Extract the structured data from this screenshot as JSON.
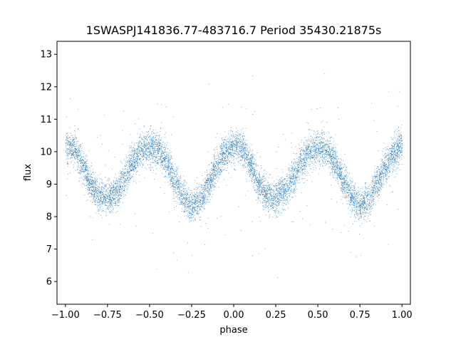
{
  "chart_data": {
    "type": "scatter",
    "title": "1SWASPJ141836.77-483716.7 Period 35430.21875s",
    "xlabel": "phase",
    "ylabel": "flux",
    "xlim": [
      -1.05,
      1.05
    ],
    "ylim": [
      5.3,
      13.4
    ],
    "x_ticks": [
      -1.0,
      -0.75,
      -0.5,
      -0.25,
      0.0,
      0.25,
      0.5,
      0.75,
      1.0
    ],
    "x_tick_labels": [
      "−1.00",
      "−0.75",
      "−0.50",
      "−0.25",
      "0.00",
      "0.25",
      "0.50",
      "0.75",
      "1.00"
    ],
    "y_ticks": [
      6,
      7,
      8,
      9,
      10,
      11,
      12,
      13
    ],
    "y_tick_labels": [
      "6",
      "7",
      "8",
      "9",
      "10",
      "11",
      "12",
      "13"
    ],
    "grid": false,
    "series_color": "#1f77b4",
    "profile_phase": [
      0.0,
      0.05,
      0.1,
      0.15,
      0.2,
      0.25,
      0.3,
      0.35,
      0.4,
      0.45,
      0.5,
      0.55,
      0.6,
      0.65,
      0.7,
      0.75,
      0.8,
      0.85,
      0.9,
      0.95,
      1.0
    ],
    "profile_flux": [
      10.2,
      10.1,
      9.6,
      9.0,
      8.65,
      8.6,
      8.75,
      9.2,
      9.7,
      10.05,
      10.15,
      10.1,
      9.7,
      9.1,
      8.6,
      8.35,
      8.5,
      9.0,
      9.55,
      9.95,
      10.2
    ]
  }
}
